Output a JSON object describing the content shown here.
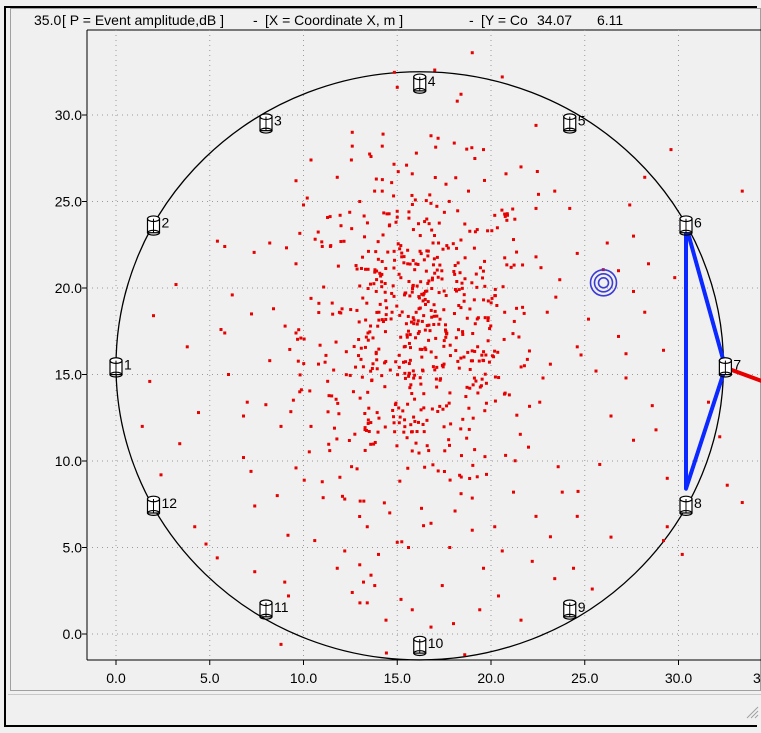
{
  "chart_data": {
    "type": "scatter",
    "header": {
      "y_top": "35.0",
      "p_label": "[ P = Event amplitude,dB ]",
      "sep1": "-",
      "x_label": "[X = Coordinate X, m ]",
      "sep2": "-",
      "y_label_fragment": "[Y = Co",
      "cursor_x": "34.07",
      "cursor_y": "6.11"
    },
    "xlim": [
      -1.5,
      34.5
    ],
    "ylim": [
      -1.5,
      35.0
    ],
    "x_ticks": [
      0,
      5,
      10,
      15,
      20,
      25,
      30
    ],
    "x_tick_labels": [
      "0.0",
      "5.0",
      "10.0",
      "15.0",
      "20.0",
      "25.0",
      "30.0"
    ],
    "x_tick_partial": "3",
    "y_ticks": [
      0,
      5,
      10,
      15,
      20,
      25,
      30
    ],
    "y_tick_labels": [
      "0.0",
      "5.0",
      "10.0",
      "15.0",
      "20.0",
      "25.0",
      "30.0"
    ],
    "grid": true,
    "boundary_circle": {
      "center": [
        16.2,
        15.5
      ],
      "radius_x": 16.2,
      "radius_y": 17.0
    },
    "sensors": [
      {
        "id": "1",
        "x": 0.0,
        "y": 15.4
      },
      {
        "id": "2",
        "x": 2.0,
        "y": 23.6
      },
      {
        "id": "3",
        "x": 8.0,
        "y": 29.5
      },
      {
        "id": "4",
        "x": 16.2,
        "y": 31.8
      },
      {
        "id": "5",
        "x": 24.2,
        "y": 29.5
      },
      {
        "id": "6",
        "x": 30.4,
        "y": 23.6
      },
      {
        "id": "7",
        "x": 32.5,
        "y": 15.4
      },
      {
        "id": "8",
        "x": 30.4,
        "y": 7.4
      },
      {
        "id": "9",
        "x": 24.2,
        "y": 1.4
      },
      {
        "id": "10",
        "x": 16.2,
        "y": -0.7
      },
      {
        "id": "11",
        "x": 8.0,
        "y": 1.4
      },
      {
        "id": "12",
        "x": 2.0,
        "y": 7.4
      }
    ],
    "highlight_triangle": {
      "vertices": [
        [
          30.4,
          23.6
        ],
        [
          32.5,
          15.4
        ],
        [
          30.4,
          8.4
        ]
      ],
      "color": "#0a28ff"
    },
    "red_pointer": {
      "from": [
        32.5,
        15.4
      ],
      "to": [
        34.5,
        14.6
      ],
      "color": "#e80000"
    },
    "target_marker": {
      "x": 26.0,
      "y": 20.3,
      "color": "#3b3bd6"
    },
    "event_color": "#e60000",
    "cluster": {
      "center": [
        16.2,
        17.4
      ],
      "sigma_x": 3.1,
      "sigma_y": 4.6,
      "count": 620
    },
    "scatter_events": [
      [
        19.0,
        33.6
      ],
      [
        15.0,
        31.6
      ],
      [
        17.0,
        32.6
      ],
      [
        20.6,
        32.2
      ],
      [
        18.2,
        30.8
      ],
      [
        12.6,
        29.0
      ],
      [
        14.2,
        28.2
      ],
      [
        19.6,
        28.0
      ],
      [
        22.4,
        29.4
      ],
      [
        21.6,
        27.0
      ],
      [
        10.4,
        27.4
      ],
      [
        9.6,
        26.2
      ],
      [
        23.4,
        25.6
      ],
      [
        24.2,
        24.6
      ],
      [
        27.4,
        24.8
      ],
      [
        28.2,
        26.4
      ],
      [
        29.6,
        28.0
      ],
      [
        33.4,
        25.6
      ],
      [
        5.8,
        22.4
      ],
      [
        10.2,
        25.2
      ],
      [
        10.0,
        24.8
      ],
      [
        6.2,
        19.6
      ],
      [
        5.6,
        17.6
      ],
      [
        5.8,
        17.4
      ],
      [
        2.0,
        18.4
      ],
      [
        1.8,
        14.6
      ],
      [
        3.2,
        20.2
      ],
      [
        7.0,
        13.4
      ],
      [
        6.8,
        12.6
      ],
      [
        6.8,
        10.2
      ],
      [
        7.2,
        9.4
      ],
      [
        8.6,
        8.0
      ],
      [
        7.4,
        7.4
      ],
      [
        4.2,
        6.2
      ],
      [
        4.8,
        5.2
      ],
      [
        5.4,
        4.4
      ],
      [
        7.4,
        3.6
      ],
      [
        9.0,
        3.0
      ],
      [
        9.2,
        2.2
      ],
      [
        8.8,
        -0.6
      ],
      [
        10.6,
        5.4
      ],
      [
        11.8,
        3.8
      ],
      [
        12.2,
        4.8
      ],
      [
        13.0,
        4.0
      ],
      [
        14.0,
        4.6
      ],
      [
        12.6,
        2.4
      ],
      [
        13.4,
        1.8
      ],
      [
        14.4,
        0.8
      ],
      [
        15.2,
        2.0
      ],
      [
        16.8,
        0.4
      ],
      [
        18.0,
        0.6
      ],
      [
        18.6,
        -1.2
      ],
      [
        19.4,
        1.4
      ],
      [
        20.4,
        2.2
      ],
      [
        21.6,
        0.8
      ],
      [
        22.2,
        4.2
      ],
      [
        23.4,
        3.2
      ],
      [
        24.4,
        3.8
      ],
      [
        25.4,
        2.6
      ],
      [
        26.4,
        5.6
      ],
      [
        24.6,
        6.8
      ],
      [
        23.8,
        8.2
      ],
      [
        25.8,
        9.8
      ],
      [
        27.6,
        11.2
      ],
      [
        26.4,
        12.6
      ],
      [
        28.6,
        13.2
      ],
      [
        27.2,
        14.8
      ],
      [
        25.6,
        15.2
      ],
      [
        24.6,
        16.6
      ],
      [
        26.8,
        17.2
      ],
      [
        28.2,
        18.6
      ],
      [
        27.6,
        19.8
      ],
      [
        28.4,
        21.4
      ],
      [
        26.2,
        22.6
      ],
      [
        27.6,
        23.0
      ],
      [
        29.8,
        20.6
      ],
      [
        29.2,
        16.4
      ],
      [
        28.8,
        11.8
      ],
      [
        29.4,
        9.0
      ],
      [
        29.4,
        6.2
      ],
      [
        30.2,
        4.6
      ],
      [
        31.6,
        13.4
      ],
      [
        32.2,
        11.4
      ],
      [
        32.6,
        8.6
      ],
      [
        33.4,
        7.6
      ],
      [
        29.2,
        5.4
      ],
      [
        27.2,
        16.2
      ],
      [
        26.8,
        21.0
      ],
      [
        25.2,
        18.2
      ],
      [
        24.6,
        22.0
      ],
      [
        22.4,
        21.8
      ],
      [
        23.0,
        18.6
      ],
      [
        22.6,
        13.4
      ],
      [
        22.0,
        10.8
      ],
      [
        21.2,
        8.2
      ],
      [
        20.2,
        6.2
      ],
      [
        19.0,
        6.0
      ],
      [
        17.8,
        5.0
      ],
      [
        16.8,
        6.4
      ],
      [
        15.6,
        5.0
      ],
      [
        14.6,
        7.0
      ],
      [
        13.4,
        6.2
      ],
      [
        12.2,
        7.8
      ],
      [
        11.0,
        8.8
      ],
      [
        11.4,
        10.6
      ],
      [
        10.4,
        12.0
      ],
      [
        9.8,
        14.0
      ],
      [
        10.8,
        15.6
      ],
      [
        9.6,
        17.4
      ],
      [
        10.4,
        19.4
      ],
      [
        9.6,
        21.4
      ],
      [
        11.0,
        22.4
      ],
      [
        12.0,
        23.6
      ],
      [
        13.0,
        25.0
      ],
      [
        14.2,
        25.6
      ],
      [
        15.8,
        26.6
      ],
      [
        17.6,
        26.0
      ],
      [
        18.8,
        25.6
      ],
      [
        20.2,
        24.2
      ],
      [
        21.2,
        22.8
      ],
      [
        22.4,
        24.6
      ],
      [
        20.8,
        26.6
      ],
      [
        16.8,
        28.8
      ],
      [
        13.6,
        27.6
      ],
      [
        11.8,
        26.4
      ],
      [
        8.2,
        22.6
      ],
      [
        8.4,
        18.8
      ],
      [
        8.2,
        15.8
      ],
      [
        8.8,
        12.0
      ],
      [
        9.6,
        9.6
      ],
      [
        13.6,
        3.4
      ],
      [
        13.2,
        3.0
      ],
      [
        13.8,
        2.8
      ],
      [
        15.8,
        1.4
      ],
      [
        17.4,
        2.8
      ],
      [
        19.6,
        3.8
      ],
      [
        20.6,
        4.8
      ],
      [
        22.4,
        6.8
      ],
      [
        2.4,
        9.2
      ],
      [
        3.4,
        11.0
      ],
      [
        4.4,
        12.8
      ],
      [
        6.0,
        15.0
      ],
      [
        3.8,
        16.6
      ],
      [
        1.4,
        12.0
      ],
      [
        12.6,
        28.2
      ],
      [
        18.4,
        31.2
      ]
    ]
  }
}
